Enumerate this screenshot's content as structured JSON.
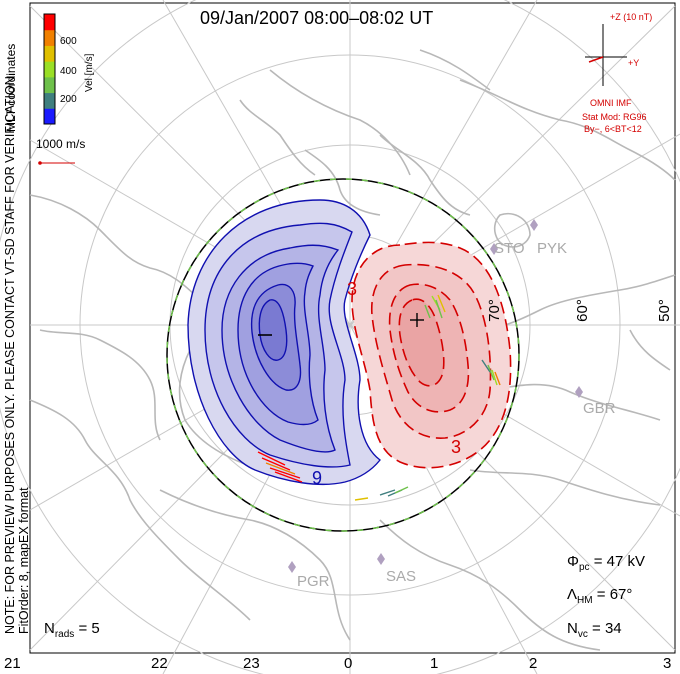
{
  "title": "09/Jan/2007  08:00–08:02  UT",
  "colorbar": {
    "title": "Vel [m/s]",
    "coords": "MLT coordinates",
    "ticks": [
      "600",
      "400",
      "200"
    ],
    "colors": [
      "#1a1aff",
      "#3f7f7f",
      "#6ec14b",
      "#9adf26",
      "#e0c000",
      "#f08000",
      "#ff0000"
    ]
  },
  "vector_scale": "1000 m/s",
  "imf": {
    "z_label": "+Z (10 nT)",
    "y_label": "+Y",
    "source": "OMNI IMF",
    "model": "Stat Mod: RG96",
    "condition": "By−, 6<BT<12"
  },
  "notes": {
    "left_margin": "NOTE: FOR PREVIEW PURPOSES ONLY. PLEASE CONTACT VT-SD STAFF FOR VERIFICATION.",
    "fit": "FitOrder: 8, mapEX format"
  },
  "lat_labels": [
    "70°",
    "60°",
    "50°"
  ],
  "mlt_labels": [
    "21",
    "22",
    "23",
    "0",
    "1",
    "2",
    "3"
  ],
  "stations": [
    "STO",
    "PYK",
    "GBR",
    "PGR",
    "SAS"
  ],
  "contour_labels": [
    "3",
    "3",
    "9"
  ],
  "stats": {
    "phi_pc": {
      "sym": "Φ",
      "sub": "pc",
      "value": "= 47 kV"
    },
    "lambda_hm": {
      "sym": "Λ",
      "sub": "HM",
      "value": "= 67°"
    },
    "n_vc": {
      "sym": "N",
      "sub": "vc",
      "value": "= 34"
    },
    "n_rads": {
      "sym": "N",
      "sub": "rads",
      "value": "= 5"
    }
  },
  "colors": {
    "negative": "#1010b0",
    "positive": "#d40000",
    "boundary": "#000000",
    "grid": "#c8c8c8",
    "coast": "#b8b8b8"
  }
}
